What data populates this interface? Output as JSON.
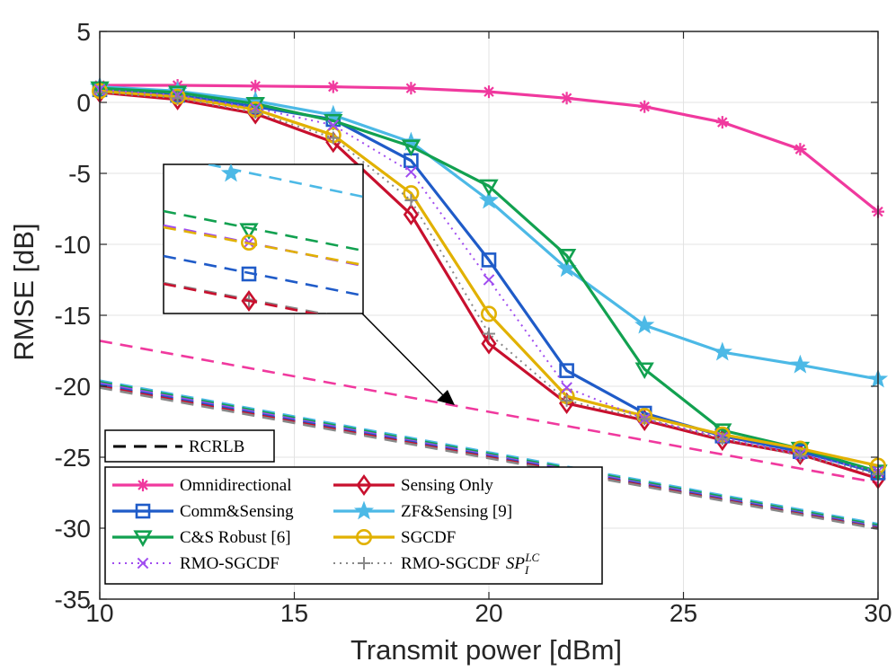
{
  "chart_data": {
    "type": "line",
    "xlabel": "Transmit power [dBm]",
    "ylabel": "RMSE [dB]",
    "xlim": [
      10,
      30
    ],
    "ylim": [
      -35,
      5
    ],
    "xticks": [
      10,
      15,
      20,
      25,
      30
    ],
    "yticks": [
      5,
      0,
      -5,
      -10,
      -15,
      -20,
      -25,
      -30,
      -35
    ],
    "xtick_labels": [
      "10",
      "15",
      "20",
      "25",
      "30"
    ],
    "ytick_labels": [
      "5",
      "0",
      "-5",
      "-10",
      "-15",
      "-20",
      "-25",
      "-30",
      "-35"
    ],
    "grid": true,
    "x": [
      10,
      12,
      14,
      16,
      18,
      20,
      22,
      24,
      26,
      28,
      30
    ],
    "series": [
      {
        "name": "Omnidirectional",
        "color": "#f0399e",
        "marker": "asterisk",
        "dash": "solid",
        "values": [
          1.2,
          1.2,
          1.15,
          1.1,
          1.0,
          0.75,
          0.3,
          -0.3,
          -1.4,
          -3.3,
          -7.7
        ]
      },
      {
        "name": "Sensing Only",
        "color": "#c8102e",
        "marker": "diamond",
        "dash": "solid",
        "values": [
          0.7,
          0.2,
          -0.8,
          -2.8,
          -7.9,
          -17.0,
          -21.2,
          -22.4,
          -23.8,
          -24.8,
          -26.5
        ]
      },
      {
        "name": "Comm&Sensing",
        "color": "#1f5bc8",
        "marker": "square",
        "dash": "solid",
        "values": [
          0.9,
          0.5,
          -0.3,
          -1.2,
          -4.1,
          -11.1,
          -18.9,
          -21.9,
          -23.5,
          -24.6,
          -26.1
        ]
      },
      {
        "name": "ZF&Sensing [9]",
        "color": "#4cb9e6",
        "marker": "star",
        "dash": "solid",
        "values": [
          1.1,
          0.8,
          0.1,
          -0.9,
          -2.8,
          -6.9,
          -11.7,
          -15.7,
          -17.6,
          -18.5,
          -19.5
        ]
      },
      {
        "name": "C&S Robust [6]",
        "color": "#12a150",
        "marker": "triangle-down",
        "dash": "solid",
        "values": [
          1.0,
          0.7,
          -0.1,
          -1.3,
          -3.1,
          -5.9,
          -10.8,
          -18.8,
          -23.1,
          -24.4,
          -26.0
        ]
      },
      {
        "name": "SGCDF",
        "color": "#e1b100",
        "marker": "circle",
        "dash": "solid",
        "values": [
          0.8,
          0.4,
          -0.5,
          -2.3,
          -6.4,
          -14.9,
          -20.7,
          -22.1,
          -23.4,
          -24.4,
          -25.6
        ]
      },
      {
        "name": "RMO-SGCDF",
        "color": "#a04cf0",
        "marker": "x",
        "dash": "dotted",
        "values": [
          0.9,
          0.5,
          -0.4,
          -1.6,
          -4.9,
          -12.5,
          -20.1,
          -22.3,
          -23.6,
          -24.8,
          -26.0
        ]
      },
      {
        "name": "RMO-SGCDF SP_I^LC",
        "color": "#888888",
        "marker": "plus",
        "dash": "dotted",
        "values": [
          0.7,
          0.3,
          -0.7,
          -2.5,
          -6.9,
          -16.3,
          -21.0,
          -22.3,
          -23.7,
          -24.9,
          -26.2
        ]
      }
    ],
    "crlb_series": [
      {
        "name": "Omnidirectional CRLB",
        "color": "#f0399e",
        "x": [
          10,
          30
        ],
        "values": [
          -16.8,
          -26.8
        ]
      },
      {
        "name": "ZF&Sensing CRLB",
        "color": "#4cb9e6",
        "x": [
          10,
          30
        ],
        "values": [
          -19.6,
          -29.7
        ]
      },
      {
        "name": "C&S Robust CRLB",
        "color": "#12a150",
        "x": [
          10,
          30
        ],
        "values": [
          -19.7,
          -29.8
        ]
      },
      {
        "name": "RMO-SGCDF CRLB",
        "color": "#a04cf0",
        "x": [
          10,
          30
        ],
        "values": [
          -19.8,
          -29.9
        ]
      },
      {
        "name": "Comm&Sensing CRLB",
        "color": "#1f5bc8",
        "x": [
          10,
          30
        ],
        "values": [
          -19.9,
          -29.95
        ]
      },
      {
        "name": "Sensing Only CRLB",
        "color": "#c8102e",
        "x": [
          10,
          30
        ],
        "values": [
          -20.0,
          -30.0
        ]
      },
      {
        "name": "Base CRLB",
        "color": "#888888",
        "x": [
          10,
          30
        ],
        "values": [
          -20.1,
          -30.05
        ]
      }
    ],
    "legend_crlb_label": "RCRLB",
    "legend_rows": [
      {
        "left": {
          "label": "Omnidirectional",
          "series": 0
        },
        "right": {
          "label": "Sensing Only",
          "series": 1
        }
      },
      {
        "left": {
          "label": "Comm&Sensing",
          "series": 2
        },
        "right": {
          "label": "ZF&Sensing [9]",
          "series": 3
        }
      },
      {
        "left": {
          "label": "C&S Robust [6]",
          "series": 4
        },
        "right": {
          "label": "SGCDF",
          "series": 5
        }
      },
      {
        "left": {
          "label": "RMO-SGCDF",
          "series": 6
        },
        "right": {
          "label": "RMO-SGCDF",
          "series": 7,
          "math": true
        }
      }
    ],
    "legend_math": {
      "base": "SP",
      "sub": "I",
      "sup": "LC"
    },
    "legend_placement": "bottom-left",
    "inset": {
      "description": "zoomed view of CRLB dashed lines",
      "placement": "upper-left"
    }
  }
}
